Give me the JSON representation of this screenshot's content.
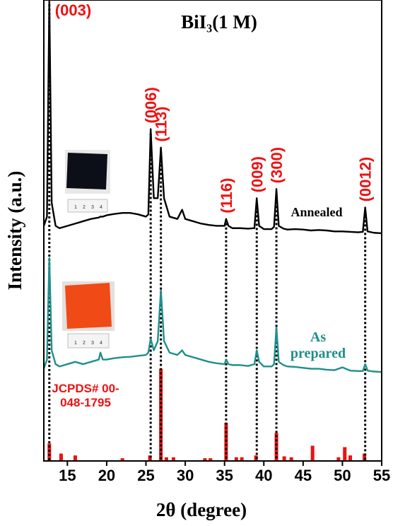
{
  "chart_data": {
    "type": "line",
    "title": "BiI₃(1 M)",
    "xlabel": "2θ (degree)",
    "ylabel": "Intensity (a.u.)",
    "xlim": [
      12,
      55
    ],
    "xticks": [
      15,
      20,
      25,
      30,
      35,
      40,
      45,
      50,
      55
    ],
    "ylim": [
      0,
      100
    ],
    "x": [
      12,
      12.4,
      12.7,
      13.0,
      13.5,
      14,
      15,
      16,
      17,
      18,
      19,
      19.2,
      19.5,
      20,
      21,
      22,
      23,
      24,
      25,
      25.3,
      25.6,
      26.0,
      26.5,
      26.9,
      27.3,
      28,
      29,
      29.6,
      30,
      31,
      32,
      33,
      34,
      35,
      35.2,
      35.5,
      36,
      37,
      38,
      38.8,
      39.1,
      39.4,
      40,
      41,
      41.3,
      41.6,
      41.9,
      42.5,
      43,
      44,
      45,
      46,
      47,
      48,
      49,
      50,
      51,
      52,
      52.6,
      52.9,
      53.2,
      54,
      55
    ],
    "series": [
      {
        "name": "Annealed",
        "color": "#000000",
        "values": [
          51,
          53,
          100,
          56,
          51,
          50.5,
          51,
          51.5,
          52,
          52.5,
          52.8,
          53,
          53,
          53.3,
          53.6,
          53.8,
          53.8,
          53.5,
          53,
          53.5,
          72,
          57,
          57,
          68,
          57,
          53,
          52.5,
          54.5,
          52.5,
          52,
          51.5,
          51.2,
          51,
          51,
          52.5,
          51,
          50.5,
          50.5,
          50.4,
          50.5,
          57,
          51,
          50.3,
          50.3,
          50.8,
          59,
          51,
          50.4,
          50.2,
          50.3,
          50.2,
          50,
          50.1,
          50,
          49.8,
          49.8,
          49.7,
          49.6,
          49.7,
          55,
          49.8,
          49.5,
          49.4
        ]
      },
      {
        "name": "As prepared",
        "color": "#1f8f8a",
        "values": [
          20,
          22,
          44,
          24,
          21,
          20.5,
          21,
          21.5,
          21,
          21.5,
          22,
          23.5,
          22,
          22,
          22.3,
          22.5,
          22.6,
          22.8,
          23,
          23.5,
          26.5,
          24,
          26,
          37,
          26,
          23.5,
          23,
          24,
          23,
          22.5,
          22,
          21.5,
          21.2,
          21,
          22,
          21,
          20.8,
          20.8,
          20.6,
          21,
          24,
          21.5,
          20.5,
          20.5,
          21,
          29,
          21.5,
          20.8,
          20.5,
          20.4,
          20.2,
          20,
          20,
          19.8,
          19.7,
          20.3,
          19.6,
          19.5,
          19.5,
          21,
          19.6,
          19.4,
          19.3
        ]
      }
    ],
    "reference": {
      "name": "JCPDS# 00-048-1795",
      "color": "#ee1111",
      "x": [
        12.7,
        14.2,
        16.0,
        22.0,
        25.5,
        26.9,
        27.6,
        28.5,
        32.5,
        33.2,
        35.2,
        36.5,
        37.2,
        39.0,
        41.6,
        42.6,
        43.5,
        46.2,
        49.5,
        50.3,
        51.0,
        52.8
      ],
      "values": [
        3.8,
        1.6,
        1.2,
        0.6,
        1.2,
        20,
        0.8,
        0.8,
        0.6,
        0.6,
        8.3,
        0.8,
        0.8,
        1.2,
        6.1,
        1.0,
        0.8,
        3.3,
        0.8,
        3.0,
        1.2,
        1.6
      ]
    },
    "annotations": [
      {
        "text": "(003)",
        "x": 12.7
      },
      {
        "text": "(006)",
        "x": 25.6
      },
      {
        "text": "(113)",
        "x": 26.9
      },
      {
        "text": "(116)",
        "x": 35.2
      },
      {
        "text": "(009)",
        "x": 39.1
      },
      {
        "text": "(300)",
        "x": 41.6
      },
      {
        "text": "(0012)",
        "x": 52.9
      }
    ],
    "ruler_labels": [
      "1",
      "2",
      "3",
      "4"
    ]
  }
}
